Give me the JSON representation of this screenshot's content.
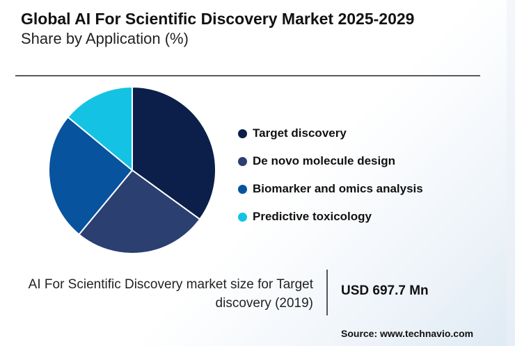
{
  "header": {
    "title": "Global AI For Scientific Discovery Market 2025-2029",
    "subtitle": "Share by Application (%)"
  },
  "chart_data": {
    "type": "pie",
    "categories": [
      "Target discovery",
      "De novo molecule design",
      "Biomarker and omics analysis",
      "Predictive toxicology"
    ],
    "values": [
      35,
      26,
      25,
      14
    ],
    "colors": [
      "#0b1f4a",
      "#2b3f70",
      "#08539e",
      "#14c3e3"
    ],
    "legend_position": "right"
  },
  "stat": {
    "description": "AI For Scientific Discovery market size for Target discovery (2019)",
    "value": "USD 697.7 Mn"
  },
  "source": "Source: www.technavio.com"
}
